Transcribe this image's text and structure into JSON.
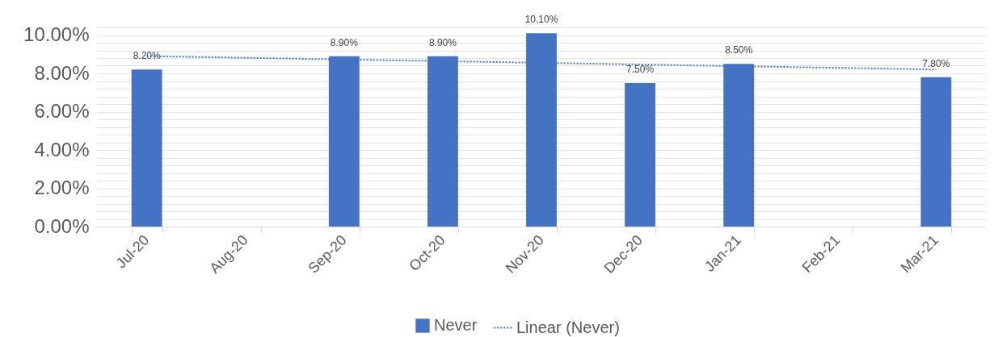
{
  "chart_data": {
    "type": "bar",
    "categories": [
      "Jul-20",
      "Aug-20",
      "Sep-20",
      "Oct-20",
      "Nov-20",
      "Dec-20",
      "Jan-21",
      "Feb-21",
      "Mar-21"
    ],
    "series": [
      {
        "name": "Never",
        "color": "#4472c4",
        "values": [
          8.2,
          null,
          8.9,
          8.9,
          10.1,
          7.5,
          8.5,
          null,
          7.8
        ],
        "value_labels": [
          "8.20%",
          null,
          "8.90%",
          "8.90%",
          "10.10%",
          "7.50%",
          "8.50%",
          null,
          "7.80%"
        ]
      },
      {
        "name": "Linear (Never)",
        "type": "line",
        "color": "#4472c4",
        "line_style": "dotted",
        "x": [
          "Jul-20",
          "Mar-21"
        ],
        "values": [
          8.9,
          8.2
        ]
      }
    ],
    "ylim": [
      0,
      10.4
    ],
    "yticks": [
      {
        "value": 0,
        "label": "0.00%"
      },
      {
        "value": 0.4,
        "label": null
      },
      {
        "value": 0.8,
        "label": null
      },
      {
        "value": 1.2,
        "label": null
      },
      {
        "value": 1.6,
        "label": null
      },
      {
        "value": 2,
        "label": "2.00%"
      },
      {
        "value": 2.4,
        "label": null
      },
      {
        "value": 2.8,
        "label": null
      },
      {
        "value": 3.2,
        "label": null
      },
      {
        "value": 3.6,
        "label": null
      },
      {
        "value": 4,
        "label": "4.00%"
      },
      {
        "value": 4.4,
        "label": null
      },
      {
        "value": 4.8,
        "label": null
      },
      {
        "value": 5.2,
        "label": null
      },
      {
        "value": 5.6,
        "label": null
      },
      {
        "value": 6,
        "label": "6.00%"
      },
      {
        "value": 6.4,
        "label": null
      },
      {
        "value": 6.8,
        "label": null
      },
      {
        "value": 7.2,
        "label": null
      },
      {
        "value": 7.6,
        "label": null
      },
      {
        "value": 8,
        "label": "8.00%"
      },
      {
        "value": 8.4,
        "label": null
      },
      {
        "value": 8.8,
        "label": null
      },
      {
        "value": 9.2,
        "label": null
      },
      {
        "value": 9.6,
        "label": null
      },
      {
        "value": 10,
        "label": "10.00%"
      },
      {
        "value": 10.4,
        "label": null
      }
    ],
    "grid": "y",
    "legend": "bottom"
  }
}
